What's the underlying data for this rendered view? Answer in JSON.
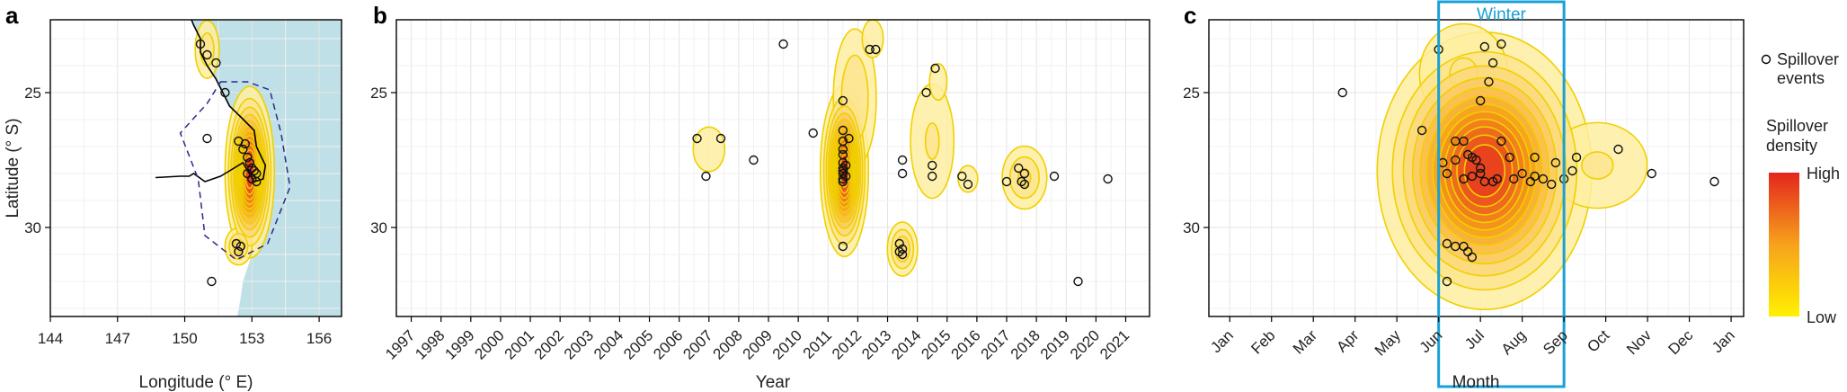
{
  "panel_labels": [
    "a",
    "b",
    "c"
  ],
  "legend": {
    "marker_label_1": "Spillover",
    "marker_label_2": "events",
    "density_title_1": "Spillover",
    "density_title_2": "density",
    "high": "High",
    "low": "Low"
  },
  "colors": {
    "ocean": "#bfe0e6",
    "contour": "#f0d000",
    "fill_low": "#fff6b0",
    "fill_high": "#e3261c",
    "range_outline": "#2a2a8a",
    "winter_box": "#19a0d8"
  },
  "chart_data": [
    {
      "type": "scatter",
      "panel": "a",
      "xlabel": "Longitude (° E)",
      "ylabel": "Latitude (° S)",
      "xlim": [
        144,
        157
      ],
      "ylim": [
        33.3,
        22.3
      ],
      "x_ticks": [
        144,
        147,
        150,
        153,
        156
      ],
      "x_tick_labels": [
        "144",
        "147",
        "150",
        "153",
        "156"
      ],
      "y_ticks": [
        25,
        30
      ],
      "y_tick_labels": [
        "25",
        "30"
      ],
      "grid": true,
      "coastline": [
        [
          148.7,
          28.15
        ],
        [
          149.8,
          28.1
        ],
        [
          150.2,
          28.1
        ],
        [
          150.4,
          28.0
        ],
        [
          150.9,
          28.3
        ],
        [
          151.6,
          28.1
        ],
        [
          152.0,
          27.9
        ],
        [
          152.6,
          27.6
        ],
        [
          153.1,
          28.3
        ],
        [
          153.5,
          28.2
        ],
        [
          153.6,
          27.7
        ],
        [
          153.2,
          27.0
        ],
        [
          153.1,
          26.4
        ],
        [
          152.5,
          25.9
        ],
        [
          152.0,
          25.5
        ],
        [
          151.7,
          25.0
        ],
        [
          151.4,
          24.5
        ],
        [
          151.0,
          24.0
        ],
        [
          150.7,
          23.5
        ],
        [
          150.7,
          23.0
        ],
        [
          150.4,
          22.5
        ],
        [
          150.3,
          22.3
        ]
      ],
      "ocean_boundary": [
        [
          150.3,
          22.3
        ],
        [
          157,
          22.3
        ],
        [
          157,
          33.3
        ],
        [
          152.35,
          33.3
        ],
        [
          152.5,
          32.6
        ],
        [
          152.6,
          32.0
        ],
        [
          152.8,
          31.5
        ],
        [
          153.0,
          31.0
        ],
        [
          153.2,
          30.5
        ],
        [
          153.4,
          30.0
        ],
        [
          153.5,
          29.4
        ],
        [
          153.6,
          28.7
        ],
        [
          153.6,
          27.7
        ],
        [
          153.2,
          27.0
        ],
        [
          153.1,
          26.4
        ],
        [
          152.5,
          25.9
        ],
        [
          152.0,
          25.5
        ],
        [
          151.7,
          25.0
        ],
        [
          151.4,
          24.5
        ],
        [
          151.0,
          24.0
        ],
        [
          150.7,
          23.5
        ],
        [
          150.7,
          23.0
        ],
        [
          150.4,
          22.5
        ]
      ],
      "species_range": [
        [
          151.6,
          24.6
        ],
        [
          152.8,
          24.6
        ],
        [
          153.8,
          24.9
        ],
        [
          154.3,
          26.5
        ],
        [
          154.7,
          28.5
        ],
        [
          153.7,
          30.6
        ],
        [
          152.3,
          31.2
        ],
        [
          150.9,
          30.3
        ],
        [
          150.6,
          28.2
        ],
        [
          149.8,
          26.5
        ],
        [
          151.0,
          25.4
        ]
      ],
      "events": [
        [
          150.7,
          23.2
        ],
        [
          151.0,
          23.6
        ],
        [
          151.4,
          23.9
        ],
        [
          151.8,
          25.0
        ],
        [
          151.0,
          26.7
        ],
        [
          152.4,
          26.8
        ],
        [
          152.6,
          27.1
        ],
        [
          152.7,
          26.9
        ],
        [
          152.8,
          27.4
        ],
        [
          152.9,
          27.6
        ],
        [
          153.0,
          27.8
        ],
        [
          153.1,
          27.9
        ],
        [
          152.8,
          28.0
        ],
        [
          153.0,
          28.2
        ],
        [
          153.2,
          28.0
        ],
        [
          153.2,
          28.3
        ],
        [
          152.3,
          30.6
        ],
        [
          152.5,
          30.7
        ],
        [
          152.4,
          30.9
        ],
        [
          151.2,
          32.0
        ]
      ],
      "density_peaks": [
        {
          "x": 152.9,
          "y": 27.95,
          "sx": 0.45,
          "sy": 1.3,
          "w": 1.0
        },
        {
          "x": 152.4,
          "y": 30.7,
          "sx": 0.35,
          "sy": 0.4,
          "w": 0.22
        },
        {
          "x": 151.0,
          "y": 23.4,
          "sx": 0.35,
          "sy": 0.7,
          "w": 0.16
        }
      ]
    },
    {
      "type": "scatter",
      "panel": "b",
      "xlabel": "Year",
      "ylabel": "",
      "xlim": [
        1996.5,
        2021.8
      ],
      "ylim": [
        33.3,
        22.3
      ],
      "x_ticks": [
        1997,
        1998,
        1999,
        2000,
        2001,
        2002,
        2003,
        2004,
        2005,
        2006,
        2007,
        2008,
        2009,
        2010,
        2011,
        2012,
        2013,
        2014,
        2015,
        2016,
        2017,
        2018,
        2019,
        2020,
        2021
      ],
      "x_tick_labels": [
        "1997",
        "1998",
        "1999",
        "2000",
        "2001",
        "2002",
        "2003",
        "2004",
        "2005",
        "2006",
        "2007",
        "2008",
        "2009",
        "2010",
        "2011",
        "2012",
        "2013",
        "2014",
        "2015",
        "2016",
        "2017",
        "2018",
        "2019",
        "2020",
        "2021"
      ],
      "y_ticks": [
        25,
        30
      ],
      "y_tick_labels": [
        "25",
        "30"
      ],
      "grid": true,
      "events": [
        [
          2009.5,
          23.2
        ],
        [
          2006.6,
          26.7
        ],
        [
          2006.9,
          28.1
        ],
        [
          2007.4,
          26.7
        ],
        [
          2008.5,
          27.5
        ],
        [
          2010.5,
          26.5
        ],
        [
          2011.5,
          25.3
        ],
        [
          2011.5,
          26.4
        ],
        [
          2011.5,
          26.8
        ],
        [
          2011.5,
          27.1
        ],
        [
          2011.5,
          27.3
        ],
        [
          2011.5,
          27.6
        ],
        [
          2011.5,
          27.8
        ],
        [
          2011.5,
          27.9
        ],
        [
          2011.5,
          28.0
        ],
        [
          2011.5,
          28.2
        ],
        [
          2011.5,
          28.3
        ],
        [
          2011.6,
          27.7
        ],
        [
          2011.6,
          28.1
        ],
        [
          2011.7,
          26.7
        ],
        [
          2011.5,
          30.7
        ],
        [
          2012.4,
          23.4
        ],
        [
          2012.6,
          23.4
        ],
        [
          2013.5,
          27.5
        ],
        [
          2013.5,
          28.0
        ],
        [
          2013.4,
          30.6
        ],
        [
          2013.5,
          30.8
        ],
        [
          2013.5,
          31.0
        ],
        [
          2013.4,
          30.9
        ],
        [
          2014.3,
          25.0
        ],
        [
          2014.6,
          24.1
        ],
        [
          2014.5,
          27.7
        ],
        [
          2014.5,
          28.1
        ],
        [
          2015.5,
          28.1
        ],
        [
          2015.7,
          28.4
        ],
        [
          2017.0,
          28.3
        ],
        [
          2017.4,
          27.8
        ],
        [
          2017.5,
          28.3
        ],
        [
          2017.6,
          28.0
        ],
        [
          2017.6,
          28.4
        ],
        [
          2018.6,
          28.1
        ],
        [
          2019.4,
          32.0
        ],
        [
          2020.4,
          28.2
        ]
      ],
      "density_peaks": [
        {
          "x": 2011.55,
          "y": 27.9,
          "sx": 0.33,
          "sy": 1.3,
          "w": 1.0
        },
        {
          "x": 2011.9,
          "y": 25.2,
          "sx": 0.45,
          "sy": 1.6,
          "w": 0.18
        },
        {
          "x": 2012.5,
          "y": 23.0,
          "sx": 0.3,
          "sy": 0.6,
          "w": 0.1
        },
        {
          "x": 2013.5,
          "y": 30.8,
          "sx": 0.28,
          "sy": 0.55,
          "w": 0.26
        },
        {
          "x": 2014.5,
          "y": 26.8,
          "sx": 0.55,
          "sy": 1.6,
          "w": 0.12
        },
        {
          "x": 2014.7,
          "y": 24.6,
          "sx": 0.3,
          "sy": 0.7,
          "w": 0.08
        },
        {
          "x": 2015.7,
          "y": 28.2,
          "sx": 0.4,
          "sy": 0.6,
          "w": 0.07
        },
        {
          "x": 2017.6,
          "y": 28.15,
          "sx": 0.45,
          "sy": 0.7,
          "w": 0.2
        },
        {
          "x": 2007.0,
          "y": 27.1,
          "sx": 0.45,
          "sy": 0.7,
          "w": 0.1
        }
      ]
    },
    {
      "type": "scatter",
      "panel": "c",
      "xlabel": "Month",
      "ylabel": "",
      "xlim": [
        0.5,
        13.3
      ],
      "ylim": [
        33.3,
        22.3
      ],
      "x_ticks": [
        1,
        2,
        3,
        4,
        5,
        6,
        7,
        8,
        9,
        10,
        11,
        12,
        13
      ],
      "x_tick_labels": [
        "Jan",
        "Feb",
        "Mar",
        "Apr",
        "May",
        "Jun",
        "Jul",
        "Aug",
        "Sep",
        "Oct",
        "Nov",
        "Dec",
        "Jan"
      ],
      "y_ticks": [
        25,
        30
      ],
      "y_tick_labels": [
        "25",
        "30"
      ],
      "grid": true,
      "annotation": {
        "label": "Winter",
        "x_start": 6.0,
        "x_end": 9.0
      },
      "events": [
        [
          3.7,
          25.0
        ],
        [
          6.0,
          23.4
        ],
        [
          7.1,
          23.3
        ],
        [
          7.3,
          23.9
        ],
        [
          7.5,
          23.2
        ],
        [
          7.2,
          24.6
        ],
        [
          7.0,
          25.3
        ],
        [
          5.6,
          26.4
        ],
        [
          6.4,
          26.8
        ],
        [
          6.6,
          26.8
        ],
        [
          6.1,
          27.6
        ],
        [
          6.2,
          28.0
        ],
        [
          6.4,
          27.5
        ],
        [
          6.7,
          27.3
        ],
        [
          6.8,
          27.4
        ],
        [
          6.9,
          27.5
        ],
        [
          7.0,
          27.8
        ],
        [
          7.0,
          28.0
        ],
        [
          7.1,
          28.3
        ],
        [
          6.6,
          28.2
        ],
        [
          6.8,
          28.1
        ],
        [
          7.3,
          28.3
        ],
        [
          7.4,
          28.2
        ],
        [
          7.5,
          26.8
        ],
        [
          7.7,
          27.4
        ],
        [
          7.8,
          28.2
        ],
        [
          8.0,
          28.0
        ],
        [
          8.2,
          28.3
        ],
        [
          8.3,
          28.1
        ],
        [
          8.5,
          28.2
        ],
        [
          8.7,
          28.4
        ],
        [
          8.8,
          27.6
        ],
        [
          9.0,
          28.2
        ],
        [
          9.2,
          27.9
        ],
        [
          10.3,
          27.1
        ],
        [
          11.1,
          28.0
        ],
        [
          12.6,
          28.3
        ],
        [
          6.4,
          30.7
        ],
        [
          6.6,
          30.7
        ],
        [
          6.7,
          30.9
        ],
        [
          6.8,
          31.1
        ],
        [
          6.2,
          30.6
        ],
        [
          6.2,
          32.0
        ],
        [
          8.3,
          27.4
        ],
        [
          9.3,
          27.4
        ]
      ],
      "density_peaks": [
        {
          "x": 7.1,
          "y": 27.9,
          "sx": 1.05,
          "sy": 2.1,
          "w": 1.0
        },
        {
          "x": 9.8,
          "y": 27.7,
          "sx": 0.9,
          "sy": 1.2,
          "w": 0.12
        },
        {
          "x": 6.6,
          "y": 24.3,
          "sx": 0.8,
          "sy": 1.4,
          "w": 0.12
        }
      ]
    }
  ]
}
